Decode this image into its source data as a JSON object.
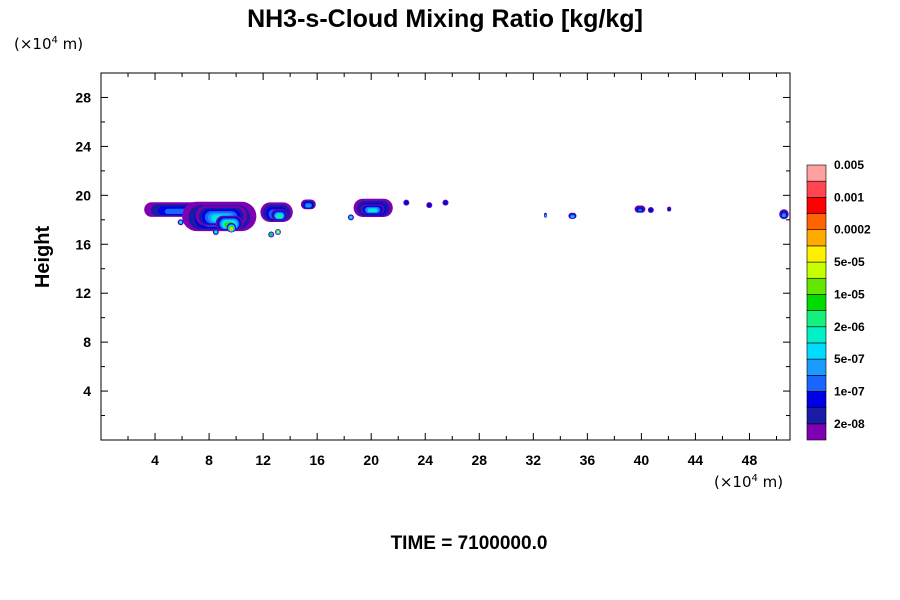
{
  "chart_data": {
    "type": "heatmap",
    "title": "NH3-s-Cloud Mixing Ratio [kg/kg]",
    "ylabel": "Height",
    "xlabel": "",
    "x_unit": {
      "base": "(×10",
      "exp": "4",
      "tail": " m)"
    },
    "y_unit": {
      "base": "(×10",
      "exp": "4",
      "tail": " m)"
    },
    "xlim": [
      0,
      51
    ],
    "ylim": [
      0,
      30
    ],
    "x_ticks": [
      4,
      8,
      12,
      16,
      20,
      24,
      28,
      32,
      36,
      40,
      44,
      48
    ],
    "y_ticks": [
      4,
      8,
      12,
      16,
      20,
      24,
      28
    ],
    "grid": false,
    "colorbar": {
      "placement": "right",
      "colors": [
        "#7f00b2",
        "#1a1aa6",
        "#0000e6",
        "#1a64ff",
        "#1a9bff",
        "#00dcff",
        "#00f0c8",
        "#14f07d",
        "#00dc00",
        "#64e600",
        "#c8ff00",
        "#fff000",
        "#ffaa00",
        "#ff6400",
        "#ff0000",
        "#ff4650",
        "#ffa0a0"
      ],
      "labels": [
        "2e-08",
        "1e-07",
        "5e-07",
        "2e-06",
        "1e-05",
        "5e-05",
        "0.0002",
        "0.001",
        "0.005"
      ]
    },
    "cloud_layers": [
      {
        "x": [
          3.2,
          8.0
        ],
        "y": [
          18.3,
          19.5
        ],
        "level": 3
      },
      {
        "x": [
          6.0,
          11.5
        ],
        "y": [
          17.2,
          19.6
        ],
        "level": 4
      },
      {
        "x": [
          7.0,
          10.8
        ],
        "y": [
          17.6,
          19.2
        ],
        "level": 6
      },
      {
        "x": [
          8.5,
          10.5
        ],
        "y": [
          17.2,
          18.4
        ],
        "level": 9
      },
      {
        "x": [
          9.3,
          10.0
        ],
        "y": [
          17.0,
          17.8
        ],
        "level": 12
      },
      {
        "x": [
          11.8,
          14.2
        ],
        "y": [
          17.9,
          19.5
        ],
        "level": 4
      },
      {
        "x": [
          12.6,
          13.8
        ],
        "y": [
          18.0,
          18.9
        ],
        "level": 7
      },
      {
        "x": [
          14.8,
          15.9
        ],
        "y": [
          18.9,
          19.7
        ],
        "level": 4
      },
      {
        "x": [
          18.7,
          21.6
        ],
        "y": [
          18.3,
          19.8
        ],
        "level": 4
      },
      {
        "x": [
          19.2,
          21.0
        ],
        "y": [
          18.5,
          19.3
        ],
        "level": 6
      },
      {
        "x": [
          32.8,
          33.0
        ],
        "y": [
          18.2,
          18.6
        ],
        "level": 5
      },
      {
        "x": [
          34.6,
          35.2
        ],
        "y": [
          18.1,
          18.6
        ],
        "level": 5
      },
      {
        "x": [
          39.5,
          40.3
        ],
        "y": [
          18.6,
          19.2
        ],
        "level": 3
      },
      {
        "x": [
          41.9,
          42.2
        ],
        "y": [
          18.7,
          19.1
        ],
        "level": 2
      },
      {
        "x": [
          50.2,
          50.9
        ],
        "y": [
          18.1,
          18.9
        ],
        "level": 4
      }
    ],
    "cloud_specks": [
      {
        "x": 5.9,
        "y": 17.8,
        "level": 6
      },
      {
        "x": 8.5,
        "y": 17.0,
        "level": 6
      },
      {
        "x": 12.6,
        "y": 16.8,
        "level": 8
      },
      {
        "x": 13.1,
        "y": 17.0,
        "level": 11
      },
      {
        "x": 18.5,
        "y": 18.2,
        "level": 5
      },
      {
        "x": 22.6,
        "y": 19.4,
        "level": 2
      },
      {
        "x": 24.3,
        "y": 19.2,
        "level": 2
      },
      {
        "x": 25.5,
        "y": 19.4,
        "level": 2
      },
      {
        "x": 40.7,
        "y": 18.8,
        "level": 2
      }
    ]
  },
  "footer": {
    "time_label": "TIME = 7100000.0"
  }
}
